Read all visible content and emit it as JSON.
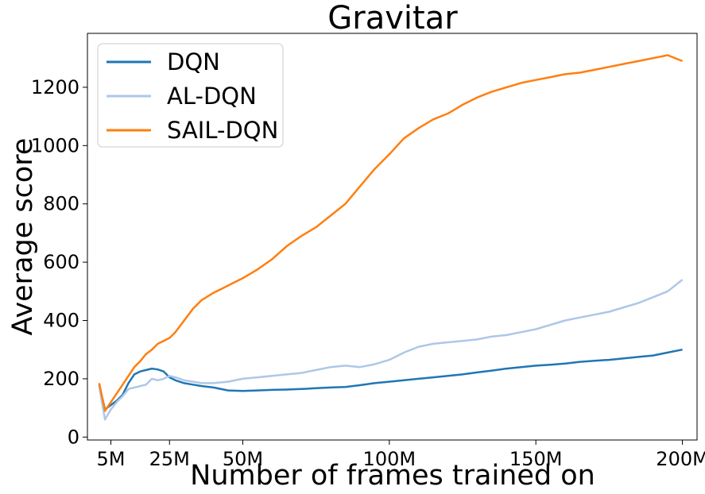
{
  "chart_data": {
    "type": "line",
    "title": "Gravitar",
    "xlabel": "Number of frames trained on",
    "ylabel": "Average score",
    "xlim": [
      -3,
      205
    ],
    "ylim": [
      -10,
      1385
    ],
    "x_ticks": [
      {
        "value": 5,
        "label": "5M"
      },
      {
        "value": 25,
        "label": "25M"
      },
      {
        "value": 50,
        "label": "50M"
      },
      {
        "value": 100,
        "label": "100M"
      },
      {
        "value": 150,
        "label": "150M"
      },
      {
        "value": 200,
        "label": "200M"
      }
    ],
    "y_ticks": [
      {
        "value": 0,
        "label": "0"
      },
      {
        "value": 200,
        "label": "200"
      },
      {
        "value": 400,
        "label": "400"
      },
      {
        "value": 600,
        "label": "600"
      },
      {
        "value": 800,
        "label": "800"
      },
      {
        "value": 1000,
        "label": "1000"
      },
      {
        "value": 1200,
        "label": "1200"
      }
    ],
    "grid": false,
    "legend_position": "top-left",
    "series": [
      {
        "name": "DQN",
        "color": "#1f77b4",
        "x": [
          1,
          3,
          5,
          7,
          9,
          11,
          13,
          15,
          17,
          19,
          21,
          23,
          25,
          27,
          30,
          33,
          36,
          40,
          45,
          50,
          55,
          60,
          65,
          70,
          75,
          80,
          85,
          90,
          95,
          100,
          105,
          110,
          115,
          120,
          125,
          130,
          135,
          140,
          145,
          150,
          155,
          160,
          165,
          170,
          175,
          180,
          185,
          190,
          195,
          200
        ],
        "y": [
          180,
          95,
          110,
          125,
          145,
          185,
          215,
          225,
          230,
          235,
          232,
          225,
          205,
          195,
          185,
          180,
          175,
          170,
          160,
          158,
          160,
          162,
          163,
          165,
          168,
          170,
          172,
          178,
          185,
          190,
          195,
          200,
          205,
          210,
          215,
          222,
          228,
          235,
          240,
          245,
          248,
          252,
          258,
          262,
          265,
          270,
          275,
          280,
          290,
          300
        ]
      },
      {
        "name": "AL-DQN",
        "color": "#aec7e8",
        "x": [
          1,
          3,
          5,
          7,
          9,
          11,
          13,
          15,
          17,
          19,
          21,
          23,
          25,
          27,
          30,
          33,
          36,
          40,
          45,
          50,
          55,
          60,
          65,
          70,
          75,
          80,
          85,
          90,
          95,
          100,
          105,
          110,
          115,
          120,
          125,
          130,
          135,
          140,
          145,
          150,
          155,
          160,
          165,
          170,
          175,
          180,
          185,
          190,
          195,
          200
        ],
        "y": [
          175,
          60,
          95,
          120,
          140,
          165,
          170,
          175,
          180,
          200,
          195,
          200,
          210,
          205,
          195,
          190,
          185,
          185,
          190,
          200,
          205,
          210,
          215,
          220,
          230,
          240,
          245,
          240,
          250,
          265,
          290,
          310,
          320,
          325,
          330,
          335,
          345,
          350,
          360,
          370,
          385,
          400,
          410,
          420,
          430,
          445,
          460,
          480,
          500,
          540
        ]
      },
      {
        "name": "SAIL-DQN",
        "color": "#ff7f0e",
        "x": [
          1,
          3,
          5,
          7,
          9,
          11,
          13,
          15,
          17,
          19,
          21,
          23,
          25,
          27,
          30,
          33,
          36,
          40,
          45,
          50,
          55,
          60,
          65,
          70,
          75,
          80,
          85,
          90,
          95,
          100,
          105,
          110,
          115,
          120,
          125,
          130,
          135,
          140,
          145,
          150,
          155,
          160,
          165,
          170,
          175,
          180,
          185,
          190,
          195,
          200
        ],
        "y": [
          185,
          90,
          120,
          150,
          180,
          210,
          240,
          260,
          285,
          300,
          320,
          330,
          340,
          360,
          400,
          440,
          470,
          495,
          520,
          545,
          575,
          610,
          655,
          690,
          720,
          760,
          800,
          860,
          920,
          970,
          1025,
          1060,
          1090,
          1110,
          1140,
          1165,
          1185,
          1200,
          1215,
          1225,
          1235,
          1245,
          1250,
          1260,
          1270,
          1280,
          1290,
          1300,
          1310,
          1290
        ]
      }
    ]
  }
}
